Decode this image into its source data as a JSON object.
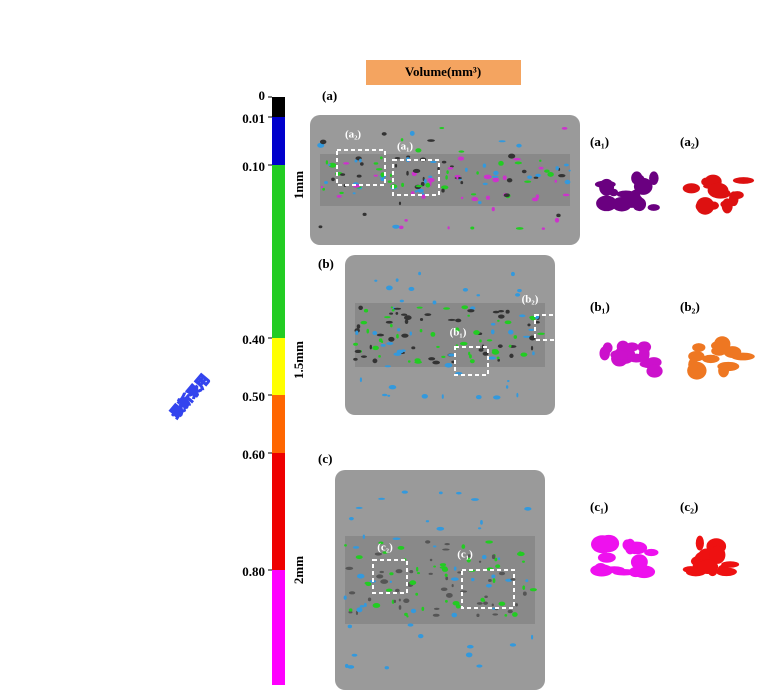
{
  "colorbar": {
    "title": "Volume(mm³)",
    "ticks": [
      {
        "value": 0,
        "label": "0"
      },
      {
        "value": 0.01,
        "label": "0.01"
      },
      {
        "value": 0.1,
        "label": "0.10"
      },
      {
        "value": 0.4,
        "label": "0.40"
      },
      {
        "value": 0.5,
        "label": "0.50"
      },
      {
        "value": 0.6,
        "label": "0.60"
      },
      {
        "value": 0.8,
        "label": "0.80"
      }
    ],
    "colors": [
      "#000000",
      "#0000cc",
      "#22cc22",
      "#ffff00",
      "#ff6600",
      "#ee0000",
      "#ff00ff"
    ]
  },
  "panels": [
    {
      "label": "(a)",
      "size": "1mm",
      "insets": [
        "(a₂)",
        "(a₁)"
      ],
      "crops": [
        "(a₁)",
        "(a₂)"
      ]
    },
    {
      "label": "(b)",
      "size": "1.5mm",
      "insets": [
        "(b₂)",
        "(b₁)"
      ],
      "crops": [
        "(b₁)",
        "(b₂)"
      ]
    },
    {
      "label": "(c)",
      "size": "2mm",
      "insets": [
        "(c₂)",
        "(c₁)"
      ],
      "crops": [
        "(c₁)",
        "(c₂)"
      ]
    }
  ],
  "watermark": "最新录用"
}
